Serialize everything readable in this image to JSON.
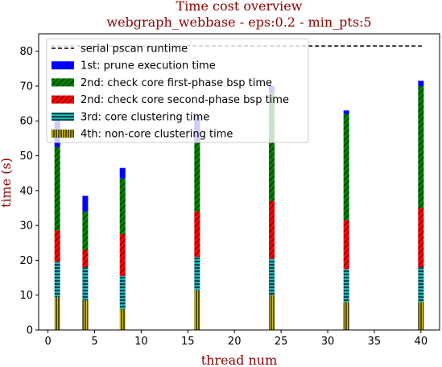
{
  "chart_data": {
    "type": "bar",
    "stacked": true,
    "title": "Time cost overview",
    "subtitle": "webgraph_webbase - eps:0.2 - min_pts:5",
    "xlabel": "thread num",
    "ylabel": "time (s)",
    "xlim": [
      -1,
      42
    ],
    "ylim": [
      0,
      85
    ],
    "xticks": [
      0,
      5,
      10,
      15,
      20,
      25,
      30,
      35,
      40
    ],
    "yticks": [
      0,
      10,
      20,
      30,
      40,
      50,
      60,
      70,
      80
    ],
    "legend_position": "upper-left",
    "grid": false,
    "x": [
      1,
      4,
      8,
      16,
      24,
      32,
      40
    ],
    "reference_line": {
      "name": "serial pscan runtime",
      "value": 81.5,
      "color": "#000000",
      "style": "dashed"
    },
    "series": [
      {
        "name": "4th: non-core clustering time",
        "color": "#d4c40c",
        "hatch": "vertical",
        "values": [
          9.5,
          8.5,
          6.0,
          11.5,
          10.0,
          8.0,
          8.0
        ]
      },
      {
        "name": "3rd: core clustering time",
        "color": "#1fb3b8",
        "hatch": "horizontal",
        "values": [
          10.0,
          9.5,
          9.5,
          9.5,
          10.5,
          9.5,
          10.0
        ]
      },
      {
        "name": "2nd: check core second-phase bsp time",
        "color": "#ff0000",
        "hatch": "diagonal",
        "values": [
          9.0,
          5.0,
          12.0,
          13.0,
          16.5,
          14.0,
          17.0
        ]
      },
      {
        "name": "2nd: check core first-phase bsp time",
        "color": "#008000",
        "hatch": "diagonal",
        "values": [
          24.0,
          11.0,
          16.0,
          20.0,
          31.0,
          30.5,
          35.0
        ]
      },
      {
        "name": "1st: prune execution time",
        "color": "#0000ff",
        "hatch": "none",
        "values": [
          8.0,
          4.5,
          3.0,
          7.5,
          2.0,
          1.0,
          1.5
        ]
      }
    ]
  }
}
